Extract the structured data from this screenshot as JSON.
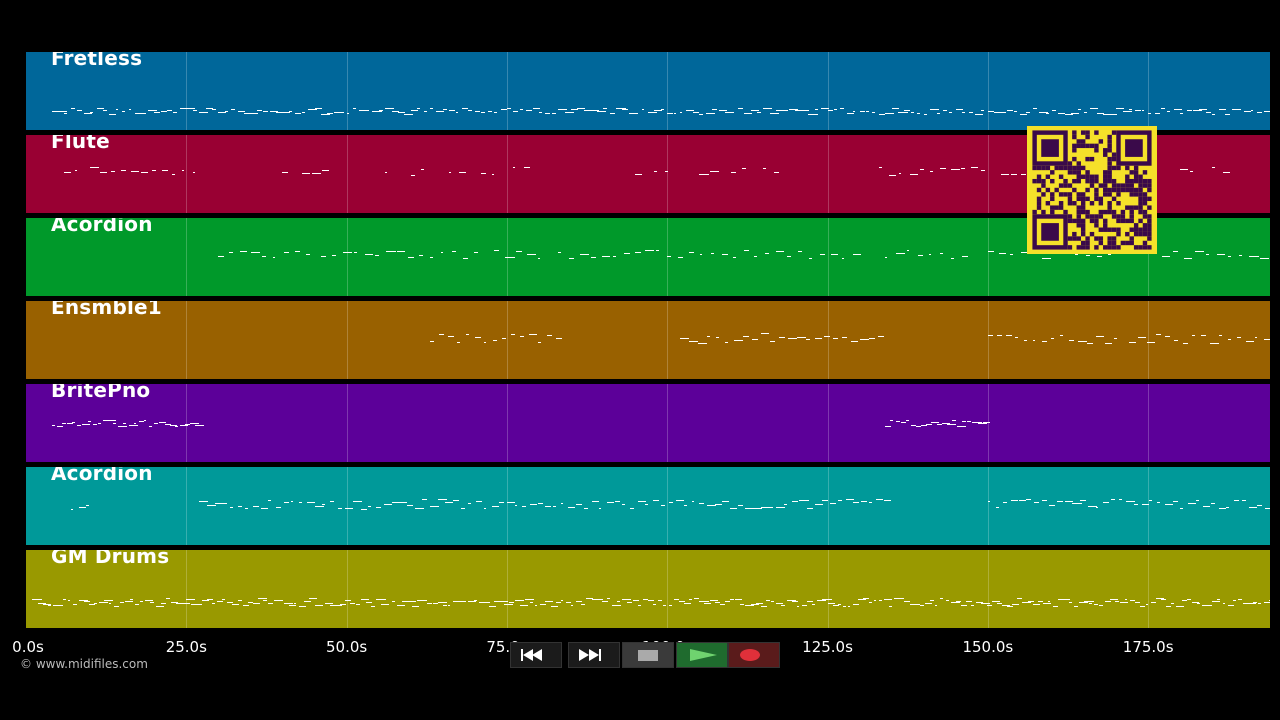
{
  "tracks": [
    {
      "name": "Fretless",
      "color": "#00679a"
    },
    {
      "name": "Flute",
      "color": "#990033"
    },
    {
      "name": "Acordion",
      "color": "#00992a"
    },
    {
      "name": "Ensmble1",
      "color": "#996100"
    },
    {
      "name": "BritePno",
      "color": "#5c0099"
    },
    {
      "name": "Acordion",
      "color": "#009999"
    },
    {
      "name": "GM Drums",
      "color": "#999900"
    }
  ],
  "timeline": {
    "duration_s": 194,
    "ticks": [
      "0.0s",
      "25.0s",
      "50.0s",
      "75.0s",
      "100.0s",
      "125.0s",
      "150.0s",
      "175.0s"
    ],
    "tick_values": [
      0,
      25,
      50,
      75,
      100,
      125,
      150,
      175
    ]
  },
  "copyright": "© www.midifiles.com",
  "transport": {
    "rewind_icon": "rewind-icon",
    "fast_forward_icon": "fast-forward-icon",
    "stop_icon": "stop-icon",
    "play_icon": "play-icon",
    "record_icon": "record-icon"
  },
  "overlay": {
    "qr_icon": "qr-code-icon",
    "qr_color": "#f5e12a"
  }
}
